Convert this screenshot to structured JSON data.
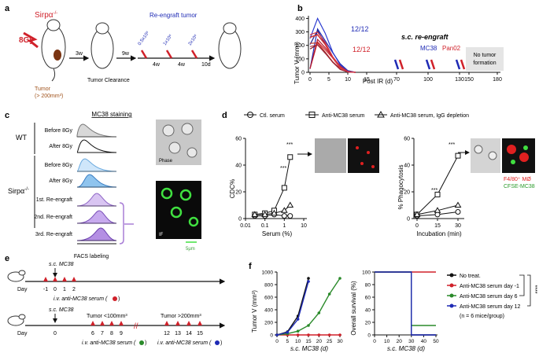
{
  "panels": {
    "a": {
      "letter": "a",
      "genotype": "Sirpα",
      "genotype_sup": "-/-",
      "dose": "8Gy",
      "tumor_label": "Tumor",
      "tumor_size": "(> 200mm³)",
      "clearance": "Tumor Clearance",
      "step1": "3w",
      "step2": "9w",
      "reengraft": "Re-engraft tumor",
      "doses": [
        "0.5x10⁶",
        "1x10⁶",
        "2x10⁶"
      ],
      "intervals": [
        "4w",
        "4w",
        "10d"
      ]
    },
    "b": {
      "letter": "b",
      "ylabel": "Tumor V (mm³)",
      "xlabel": "Post IR (d)",
      "frac_blue": "12/12",
      "frac_red": "12/12",
      "sc_reengraft": "s.c. re-engraft",
      "mc38": "MC38",
      "pan02": "Pan02",
      "no_tumor_1": "No tumor",
      "no_tumor_2": "formation"
    },
    "c": {
      "letter": "c",
      "title": "MC38 staining",
      "wt": "WT",
      "ko": "Sirpα",
      "ko_sup": "-/-",
      "rows": [
        "Before 8Gy",
        "After 8Gy",
        "Before 8Gy",
        "After 8Gy",
        "1st. Re-engraft",
        "2nd. Re-engraft",
        "3rd. Re-engraft"
      ],
      "xlabel": "FACS labeling",
      "phase": "Phase",
      "if": "IF",
      "scale": "5μm"
    },
    "d": {
      "letter": "d",
      "legend": [
        "Ctl. serum",
        "Anti-MC38 serum",
        "Anti-MC38 serum, IgG depletion"
      ],
      "left_ylabel": "CDC%",
      "left_xlabel": "Serum (%)",
      "right_ylabel": "% Phagocytosis",
      "right_xlabel": "Incubation (min)",
      "stars": "***",
      "f480": "F4/80⁺ MØ",
      "cfse": "CFSE-MC38"
    },
    "e": {
      "letter": "e",
      "sc1": "s.c. MC38",
      "day_label": "Day",
      "days1": [
        "-1",
        "0",
        "1",
        "2"
      ],
      "iv1": "i.v. anti-MC38 serum (",
      "sc2": "s.c. MC38",
      "days2_0": "0",
      "t_small": "Tumor <100mm³",
      "t_big": "Tumor >200mm³",
      "days2a": [
        "6",
        "7",
        "8",
        "9"
      ],
      "days2b": [
        "12",
        "13",
        "14",
        "15"
      ],
      "iv2": "i.v. anti-MC38 serum (",
      "iv3": "i.v. anti-MC38 serum ("
    },
    "f": {
      "letter": "f",
      "left_ylabel": "Tumor V (mm³)",
      "left_xlabel": "s.c. MC38 (d)",
      "right_ylabel": "Overall survival (%)",
      "right_xlabel": "s.c. MC38 (d)",
      "legend": [
        "No treat.",
        "Anti-MC38 serum day -1",
        "Anti-MC38 serum day 6",
        "Anti-MC38 serum day 12"
      ],
      "n_note": "(n = 6 mice/group)",
      "stars": "****"
    }
  },
  "colors": {
    "red": "#d0212a",
    "blue": "#1f2bb5",
    "green": "#2a8a2a",
    "black": "#111111",
    "purple": "#a97fd6",
    "lightblue": "#8fc4ee",
    "maroon": "#8b1a1a"
  },
  "chart_data": [
    {
      "type": "line",
      "id": "b",
      "x": [
        0,
        2,
        4,
        6,
        8,
        10,
        12
      ],
      "series": [
        {
          "values": [
            240,
            400,
            320,
            220,
            120,
            40,
            0
          ]
        },
        {
          "values": [
            250,
            280,
            230,
            160,
            80,
            20,
            0
          ]
        }
      ],
      "xticks": [
        0,
        5,
        10,
        15,
        70,
        100,
        130,
        150,
        180
      ],
      "yticks": [
        0,
        100,
        200,
        300,
        400
      ],
      "ylim": [
        0,
        420
      ]
    },
    {
      "type": "line",
      "id": "d-left",
      "x": [
        0.03,
        0.1,
        0.3,
        1,
        2
      ],
      "series": [
        {
          "values": [
            2,
            2,
            3,
            2,
            2
          ]
        },
        {
          "values": [
            3,
            4,
            6,
            23,
            46
          ]
        },
        {
          "values": [
            3,
            3,
            4,
            6,
            10
          ]
        }
      ],
      "xticks": [
        "0.01",
        "0.1",
        "1",
        "10"
      ],
      "yticks": [
        0,
        20,
        40,
        60
      ],
      "ylim": [
        0,
        60
      ]
    },
    {
      "type": "line",
      "id": "d-right",
      "x": [
        0,
        15,
        30
      ],
      "series": [
        {
          "values": [
            2,
            3,
            5
          ]
        },
        {
          "values": [
            3,
            18,
            47
          ]
        },
        {
          "values": [
            3,
            6,
            10
          ]
        }
      ],
      "xticks": [
        0,
        15,
        30
      ],
      "yticks": [
        0,
        20,
        40,
        60
      ],
      "ylim": [
        0,
        60
      ]
    },
    {
      "type": "line",
      "id": "f-left",
      "x": [
        0,
        5,
        10,
        15,
        20,
        25,
        30
      ],
      "series": [
        {
          "values": [
            0,
            50,
            300,
            900,
            0,
            0,
            0
          ]
        },
        {
          "values": [
            0,
            0,
            0,
            0,
            0,
            0,
            0
          ]
        },
        {
          "values": [
            0,
            20,
            60,
            150,
            350,
            650,
            900
          ]
        },
        {
          "values": [
            0,
            40,
            250,
            850,
            0,
            0,
            0
          ]
        }
      ],
      "xticks": [
        0,
        5,
        10,
        15,
        20,
        25,
        30
      ],
      "yticks": [
        0,
        200,
        400,
        600,
        800,
        1000
      ],
      "ylim": [
        0,
        1000
      ]
    },
    {
      "type": "line",
      "id": "f-right",
      "x": [
        0,
        10,
        20,
        30,
        40,
        50
      ],
      "series": [
        {
          "values": [
            100,
            100,
            100,
            0,
            0,
            0
          ]
        },
        {
          "values": [
            100,
            100,
            100,
            100,
            100,
            100
          ]
        },
        {
          "values": [
            100,
            100,
            100,
            15,
            15,
            15
          ]
        },
        {
          "values": [
            100,
            100,
            100,
            0,
            0,
            0
          ]
        }
      ],
      "xticks": [
        0,
        10,
        20,
        30,
        40,
        50
      ],
      "yticks": [
        0,
        20,
        40,
        60,
        80,
        100
      ],
      "ylim": [
        0,
        100
      ]
    }
  ]
}
